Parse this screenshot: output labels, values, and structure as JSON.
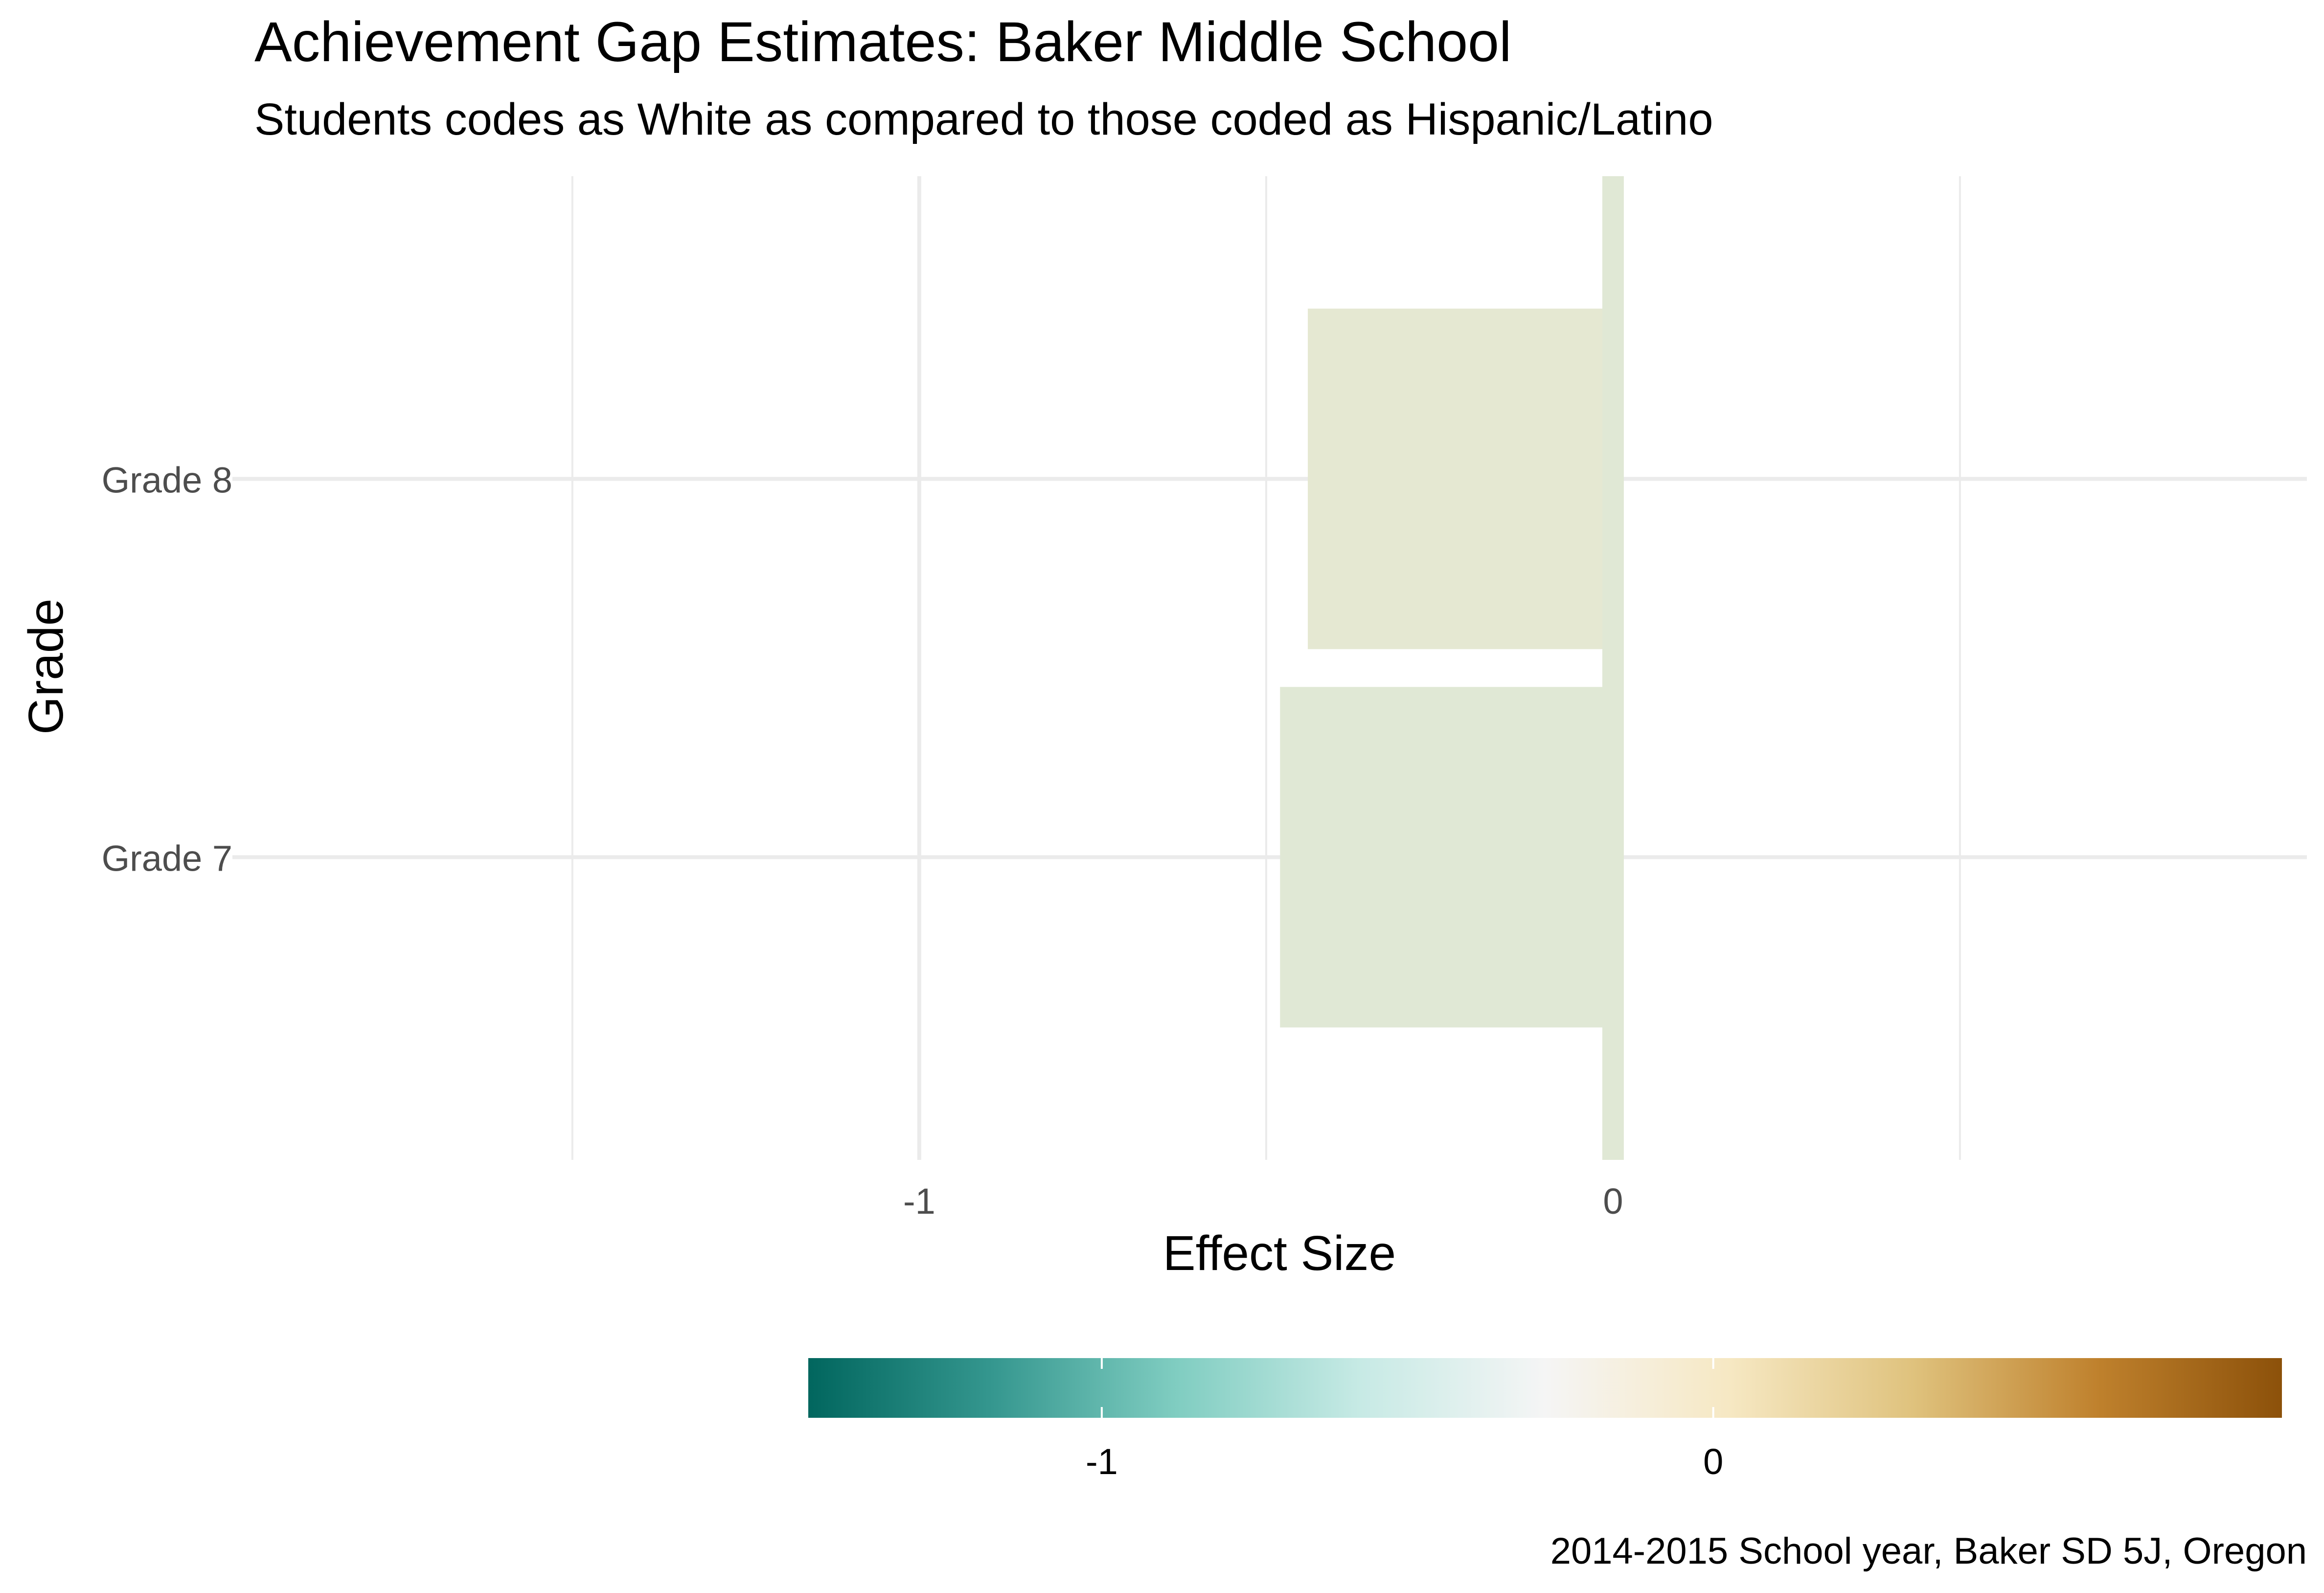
{
  "chart_data": {
    "type": "bar",
    "orientation": "horizontal",
    "title": "Achievement Gap Estimates: Baker Middle School",
    "subtitle": "Students codes as White as compared to those coded as Hispanic/Latino",
    "caption": "2014-2015 School year, Baker SD 5J, Oregon",
    "xlabel": "Effect Size",
    "ylabel": "Grade",
    "categories": [
      "Grade 8",
      "Grade 7"
    ],
    "values": [
      -0.44,
      -0.48
    ],
    "xlim": [
      -1.99,
      1.0
    ],
    "x_ticks": [
      {
        "value": -1,
        "label": "-1"
      },
      {
        "value": 0,
        "label": "0"
      }
    ],
    "x_minor_gridlines": [
      -1.5,
      -0.5,
      0.5
    ],
    "zero_line": true,
    "grid": true,
    "legend": {
      "type": "colorbar",
      "placement": "bottom",
      "range": [
        -1.48,
        0.93
      ],
      "ticks": [
        {
          "value": -1,
          "label": "-1"
        },
        {
          "value": 0,
          "label": "0"
        }
      ],
      "colors": [
        "#01665e",
        "#35978f",
        "#80cdc1",
        "#c7eae5",
        "#f5f5f5",
        "#f6e8c3",
        "#dfc27d",
        "#bf812d",
        "#8c510a"
      ]
    },
    "bar_colors": [
      "#e5e8d2",
      "#e0e8d5"
    ]
  }
}
